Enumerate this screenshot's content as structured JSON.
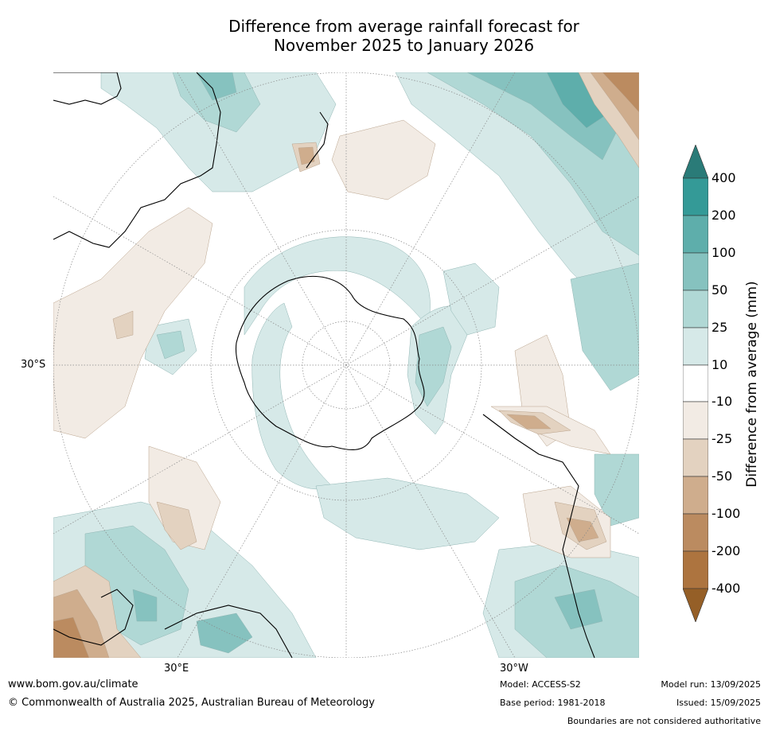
{
  "title_line1": "Difference from average rainfall forecast for",
  "title_line2": "November 2025 to January 2026",
  "map": {
    "lat_label": "30°S",
    "lon_label_left": "30°E",
    "lon_label_right": "30°W"
  },
  "colorbar": {
    "label": "Difference from average (mm)",
    "ticks": [
      "400",
      "200",
      "100",
      "50",
      "25",
      "10",
      "-10",
      "-25",
      "-50",
      "-100",
      "-200",
      "-400"
    ],
    "colors": {
      "over_400": "#2a7b78",
      "200_400": "#349a97",
      "100_200": "#5eaeab",
      "50_100": "#86c2bf",
      "25_50": "#b0d8d5",
      "10_25": "#d6e9e8",
      "neutral": "#ffffff",
      "minus10_minus25": "#f2ebe4",
      "minus25_minus50": "#e3d2c0",
      "minus50_minus100": "#cfad8d",
      "minus100_minus200": "#bb8b60",
      "minus200_minus400": "#ad743f",
      "under_minus400": "#955f27"
    }
  },
  "footer": {
    "website": "www.bom.gov.au/climate",
    "copyright": "© Commonwealth of Australia 2025, Australian Bureau of Meteorology",
    "model": "Model: ACCESS-S2",
    "base_period": "Base period: 1981-2018",
    "model_run": "Model run: 13/09/2025",
    "issued": "Issued: 15/09/2025",
    "disclaimer": "Boundaries are not considered authoritative"
  }
}
